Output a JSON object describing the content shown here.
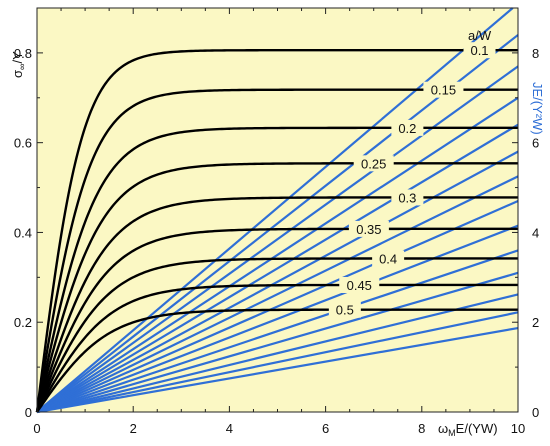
{
  "chart_data": {
    "type": "line",
    "xlabel_main": "ω",
    "xlabel_sub": "M",
    "xlabel_rest": "E/(YW)",
    "ylabel_main": "σ",
    "ylabel_sub": "∞",
    "ylabel_rest": "/Y",
    "y2label": "JE/(Y²W)",
    "legend_title": "a/W",
    "xlim": [
      0,
      10
    ],
    "ylim": [
      0,
      0.9
    ],
    "y2lim": [
      0,
      9
    ],
    "xticks": [
      "0",
      "2",
      "4",
      "6",
      "8",
      "10"
    ],
    "yticks": [
      "0",
      "0.2",
      "0.4",
      "0.6",
      "0.8"
    ],
    "y2ticks": [
      "0",
      "2",
      "4",
      "6",
      "8"
    ],
    "grid": false,
    "background_color": "#fbf8c4",
    "stress_color": "#000000",
    "energy_color": "#2f6fd6",
    "stress_series": [
      {
        "name": "0.1",
        "asymptote": 0.806,
        "rate": 3.6,
        "label_x": 9.2
      },
      {
        "name": "0.15",
        "asymptote": 0.718,
        "rate": 2.75,
        "label_x": 8.45
      },
      {
        "name": "0.2",
        "asymptote": 0.633,
        "rate": 2.15,
        "label_x": 7.7
      },
      {
        "name": "0.25",
        "asymptote": 0.554,
        "rate": 1.75,
        "label_x": 7.0
      },
      {
        "name": "0.3",
        "asymptote": 0.478,
        "rate": 1.42,
        "label_x": 7.7
      },
      {
        "name": "0.35",
        "asymptote": 0.408,
        "rate": 1.18,
        "label_x": 6.9
      },
      {
        "name": "0.4",
        "asymptote": 0.342,
        "rate": 0.98,
        "label_x": 7.3
      },
      {
        "name": "0.45",
        "asymptote": 0.283,
        "rate": 0.8,
        "label_x": 6.7
      },
      {
        "name": "0.5",
        "asymptote": 0.228,
        "rate": 0.65,
        "label_x": 6.4
      }
    ],
    "energy_slopes": [
      0.91,
      0.84,
      0.77,
      0.7,
      0.64,
      0.58,
      0.525,
      0.47,
      0.415,
      0.36,
      0.31,
      0.262,
      0.222,
      0.187
    ]
  }
}
